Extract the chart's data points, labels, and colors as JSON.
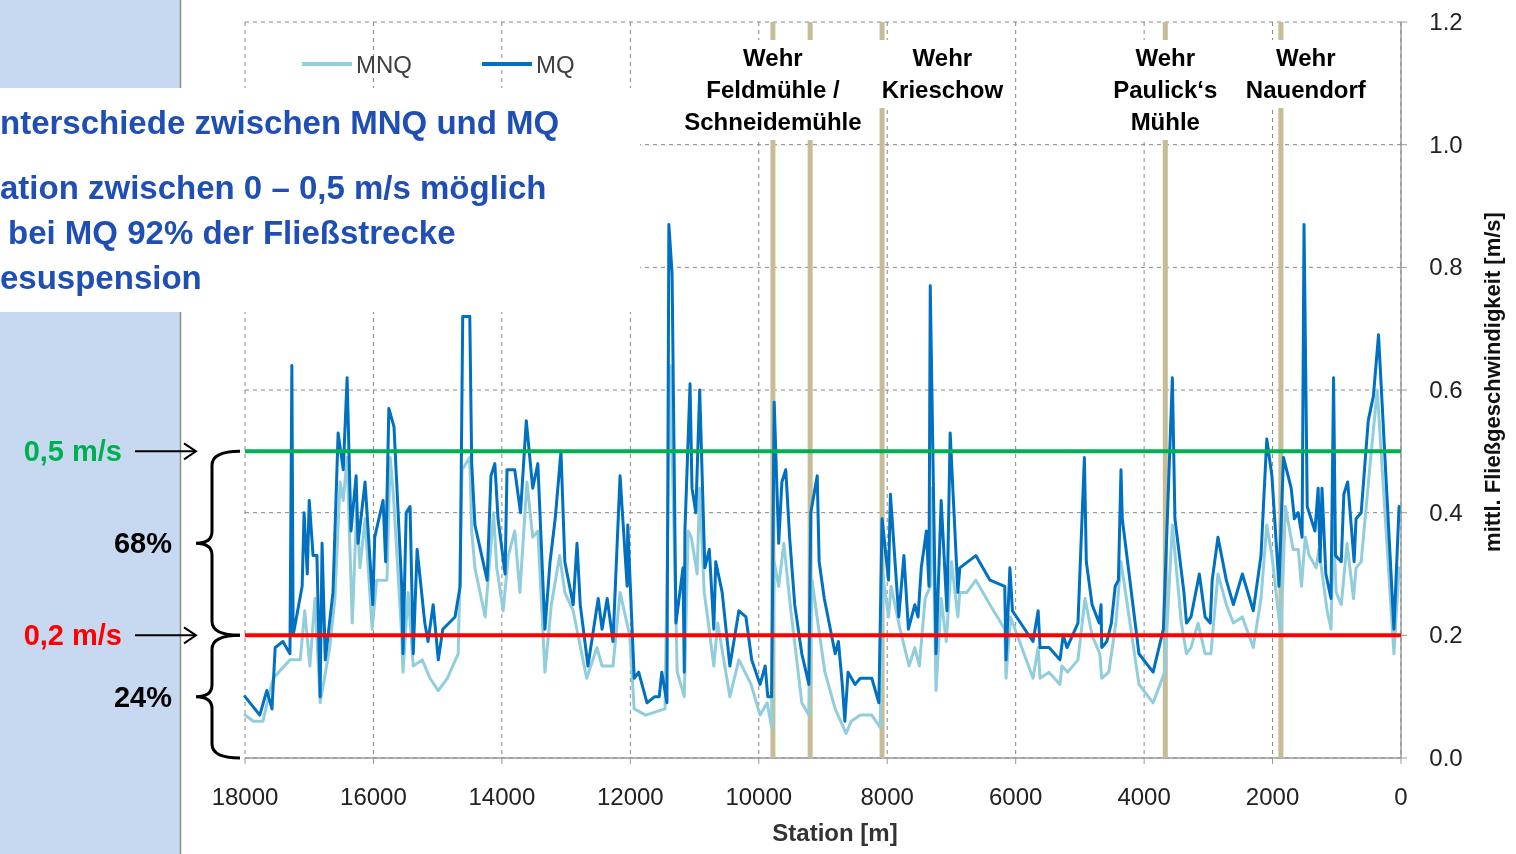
{
  "chart_data": {
    "type": "line",
    "xlabel": "Station [m]",
    "ylabel": "mittl. Fließgeschwindigkeit [m/s]",
    "xlim": [
      18000,
      0
    ],
    "xticks": [
      18000,
      16000,
      14000,
      12000,
      10000,
      8000,
      6000,
      4000,
      2000,
      0
    ],
    "ylim": [
      0,
      1.2
    ],
    "yticks": [
      {
        "value": 0,
        "label": "0.0"
      },
      0.2,
      0.4,
      0.6,
      0.8,
      {
        "value": 1,
        "label": "1.0"
      },
      1.2
    ],
    "grid": true,
    "legend": "top left",
    "line_style": "solid",
    "series": [
      {
        "name": "MNQ",
        "color": "#92cddc",
        "x": [
          18000,
          17870,
          17720,
          17610,
          17560,
          17300,
          17140,
          17070,
          16990,
          16910,
          16830,
          16680,
          16600,
          16520,
          16470,
          16410,
          16330,
          16260,
          16210,
          16130,
          16020,
          15950,
          15790,
          15740,
          15690,
          15560,
          15540,
          15460,
          15380,
          15240,
          15120,
          14990,
          14850,
          14680,
          14620,
          14500,
          14470,
          14420,
          14260,
          14130,
          14080,
          13980,
          13900,
          13800,
          13720,
          13610,
          13520,
          13440,
          13330,
          13230,
          13100,
          13020,
          12890,
          12680,
          12520,
          12440,
          12270,
          12160,
          12010,
          11940,
          11760,
          11460,
          11380,
          11270,
          11160,
          11100,
          11050,
          10960,
          10920,
          10850,
          10810,
          10700,
          10640,
          10450,
          10310,
          10120,
          9980,
          9870,
          9800,
          9760,
          9690,
          9610,
          9500,
          9330,
          9220,
          9170,
          9080,
          8970,
          8810,
          8640,
          8560,
          8420,
          8240,
          8110,
          8070,
          7980,
          7940,
          7800,
          7660,
          7570,
          7500,
          7410,
          7330,
          7300,
          7240,
          7160,
          7080,
          7000,
          6900,
          6870,
          6760,
          6620,
          6400,
          6170,
          6150,
          6080,
          5730,
          5650,
          5620,
          5480,
          5310,
          5280,
          5190,
          5030,
          4920,
          4810,
          4690,
          4660,
          4550,
          4440,
          4360,
          4080,
          3860,
          3680,
          3560,
          3420,
          3340,
          3270,
          3160,
          3050,
          2960,
          2850,
          2720,
          2610,
          2470,
          2300,
          2180,
          2090,
          2010,
          1870,
          1800,
          1680,
          1600,
          1550,
          1490,
          1430,
          1320,
          1280,
          1240,
          1150,
          1090,
          1050,
          1010,
          930,
          840,
          740,
          700,
          620,
          480,
          370,
          250,
          110,
          30
        ],
        "values": [
          0.07,
          0.06,
          0.06,
          0.11,
          0.13,
          0.16,
          0.16,
          0.24,
          0.15,
          0.26,
          0.09,
          0.18,
          0.26,
          0.45,
          0.42,
          0.49,
          0.22,
          0.41,
          0.31,
          0.39,
          0.21,
          0.29,
          0.29,
          0.49,
          0.43,
          0.2,
          0.14,
          0.27,
          0.15,
          0.16,
          0.13,
          0.11,
          0.13,
          0.17,
          0.47,
          0.49,
          0.37,
          0.31,
          0.23,
          0.4,
          0.31,
          0.24,
          0.33,
          0.37,
          0.27,
          0.45,
          0.36,
          0.37,
          0.14,
          0.25,
          0.33,
          0.27,
          0.24,
          0.13,
          0.18,
          0.15,
          0.15,
          0.27,
          0.2,
          0.08,
          0.07,
          0.08,
          0.64,
          0.14,
          0.1,
          0.37,
          0.36,
          0.3,
          0.44,
          0.27,
          0.24,
          0.15,
          0.22,
          0.1,
          0.16,
          0.12,
          0.07,
          0.09,
          0.05,
          0.32,
          0.28,
          0.35,
          0.24,
          0.09,
          0.07,
          0.29,
          0.22,
          0.14,
          0.08,
          0.04,
          0.06,
          0.07,
          0.07,
          0.05,
          0.3,
          0.23,
          0.28,
          0.21,
          0.15,
          0.18,
          0.15,
          0.26,
          0.28,
          0.44,
          0.11,
          0.26,
          0.19,
          0.32,
          0.23,
          0.27,
          0.27,
          0.29,
          0.25,
          0.21,
          0.13,
          0.23,
          0.13,
          0.18,
          0.13,
          0.14,
          0.12,
          0.15,
          0.14,
          0.16,
          0.26,
          0.2,
          0.17,
          0.13,
          0.14,
          0.22,
          0.32,
          0.12,
          0.09,
          0.14,
          0.38,
          0.22,
          0.17,
          0.18,
          0.22,
          0.17,
          0.17,
          0.3,
          0.25,
          0.22,
          0.23,
          0.18,
          0.26,
          0.38,
          0.33,
          0.2,
          0.41,
          0.34,
          0.34,
          0.28,
          0.36,
          0.33,
          0.31,
          0.34,
          0.31,
          0.24,
          0.21,
          0.38,
          0.27,
          0.25,
          0.35,
          0.26,
          0.31,
          0.32,
          0.48,
          0.6,
          0.4,
          0.17,
          0.31
        ]
      },
      {
        "name": "MQ",
        "color": "#0070c0",
        "x": [
          18000,
          17770,
          17660,
          17580,
          17530,
          17410,
          17300,
          17270,
          17250,
          17110,
          17080,
          17030,
          17000,
          16940,
          16880,
          16830,
          16800,
          16750,
          16630,
          16550,
          16470,
          16410,
          16350,
          16270,
          16240,
          16130,
          16010,
          15980,
          15850,
          15810,
          15760,
          15680,
          15560,
          15540,
          15490,
          15430,
          15380,
          15320,
          15200,
          15150,
          15070,
          14990,
          14920,
          14730,
          14650,
          14610,
          14500,
          14470,
          14420,
          14230,
          14170,
          14110,
          14060,
          13950,
          13920,
          13800,
          13710,
          13620,
          13520,
          13440,
          13330,
          13250,
          13170,
          13080,
          13020,
          12890,
          12830,
          12780,
          12660,
          12500,
          12440,
          12360,
          12270,
          12160,
          12050,
          12040,
          11940,
          11870,
          11740,
          11620,
          11550,
          11510,
          11430,
          11400,
          11350,
          11290,
          11180,
          11160,
          11150,
          11070,
          11040,
          10980,
          10920,
          10840,
          10770,
          10700,
          10670,
          10570,
          10450,
          10310,
          10200,
          10110,
          9980,
          9900,
          9860,
          9800,
          9760,
          9690,
          9640,
          9580,
          9520,
          9440,
          9330,
          9220,
          9190,
          9090,
          9060,
          8980,
          8810,
          8760,
          8700,
          8660,
          8610,
          8500,
          8420,
          8240,
          8130,
          8080,
          7980,
          7950,
          7820,
          7740,
          7670,
          7570,
          7520,
          7470,
          7390,
          7350,
          7330,
          7240,
          7160,
          7070,
          7020,
          6900,
          6870,
          6620,
          6400,
          6170,
          6150,
          6090,
          6050,
          5730,
          5650,
          5620,
          5480,
          5310,
          5260,
          5200,
          5030,
          4930,
          4900,
          4810,
          4700,
          4670,
          4660,
          4580,
          4510,
          4450,
          4400,
          4360,
          4340,
          4080,
          3860,
          3700,
          3560,
          3520,
          3380,
          3340,
          3270,
          3140,
          3050,
          2970,
          2940,
          2850,
          2720,
          2610,
          2470,
          2300,
          2180,
          2090,
          2010,
          1900,
          1830,
          1710,
          1660,
          1600,
          1540,
          1510,
          1460,
          1340,
          1290,
          1260,
          1230,
          1170,
          1090,
          1050,
          1020,
          930,
          890,
          830,
          730,
          700,
          620,
          510,
          430,
          350,
          110,
          30
        ],
        "values": [
          0.1,
          0.07,
          0.11,
          0.08,
          0.18,
          0.19,
          0.17,
          0.64,
          0.2,
          0.28,
          0.4,
          0.3,
          0.42,
          0.33,
          0.33,
          0.1,
          0.35,
          0.16,
          0.27,
          0.53,
          0.47,
          0.62,
          0.37,
          0.46,
          0.35,
          0.45,
          0.25,
          0.36,
          0.42,
          0.32,
          0.57,
          0.54,
          0.28,
          0.17,
          0.4,
          0.41,
          0.17,
          0.34,
          0.22,
          0.19,
          0.25,
          0.16,
          0.21,
          0.23,
          0.28,
          0.72,
          0.72,
          0.48,
          0.38,
          0.29,
          0.46,
          0.48,
          0.39,
          0.3,
          0.47,
          0.47,
          0.4,
          0.55,
          0.44,
          0.48,
          0.21,
          0.32,
          0.39,
          0.5,
          0.32,
          0.25,
          0.35,
          0.25,
          0.15,
          0.26,
          0.21,
          0.26,
          0.19,
          0.46,
          0.28,
          0.38,
          0.13,
          0.14,
          0.09,
          0.1,
          0.1,
          0.14,
          0.09,
          0.87,
          0.79,
          0.22,
          0.31,
          0.14,
          0.37,
          0.61,
          0.44,
          0.4,
          0.6,
          0.31,
          0.34,
          0.21,
          0.32,
          0.27,
          0.15,
          0.24,
          0.23,
          0.16,
          0.12,
          0.15,
          0.1,
          0.1,
          0.58,
          0.35,
          0.45,
          0.47,
          0.36,
          0.25,
          0.17,
          0.12,
          0.4,
          0.46,
          0.32,
          0.26,
          0.17,
          0.19,
          0.12,
          0.06,
          0.14,
          0.12,
          0.13,
          0.13,
          0.09,
          0.39,
          0.29,
          0.43,
          0.23,
          0.33,
          0.21,
          0.25,
          0.23,
          0.31,
          0.37,
          0.28,
          0.77,
          0.17,
          0.42,
          0.24,
          0.53,
          0.27,
          0.31,
          0.33,
          0.29,
          0.28,
          0.16,
          0.31,
          0.24,
          0.19,
          0.24,
          0.18,
          0.18,
          0.16,
          0.2,
          0.18,
          0.22,
          0.49,
          0.32,
          0.25,
          0.22,
          0.25,
          0.18,
          0.19,
          0.22,
          0.28,
          0.29,
          0.47,
          0.39,
          0.17,
          0.14,
          0.21,
          0.62,
          0.39,
          0.27,
          0.22,
          0.23,
          0.3,
          0.23,
          0.22,
          0.29,
          0.36,
          0.29,
          0.25,
          0.3,
          0.24,
          0.33,
          0.52,
          0.46,
          0.28,
          0.49,
          0.44,
          0.39,
          0.4,
          0.36,
          0.87,
          0.41,
          0.37,
          0.44,
          0.32,
          0.44,
          0.3,
          0.26,
          0.62,
          0.33,
          0.32,
          0.43,
          0.45,
          0.32,
          0.39,
          0.4,
          0.55,
          0.59,
          0.69,
          0.21,
          0.41
        ]
      }
    ],
    "ref_lines": [
      {
        "axis": "y",
        "value": 0.5,
        "label": "0,5 m/s",
        "color": "#00b050"
      },
      {
        "axis": "y",
        "value": 0.2,
        "label": "0,2 m/s",
        "color": "#ff0000"
      },
      {
        "axis": "x",
        "value": 9780,
        "label": "Wehr\nFeldmühle /\nSchneidemühle",
        "color": "#c4bd97"
      },
      {
        "axis": "x",
        "value": 9200,
        "label": null,
        "color": "#c4bd97"
      },
      {
        "axis": "x",
        "value": 8080,
        "label": "Wehr\nKrieschow",
        "color": "#c4bd97"
      },
      {
        "axis": "x",
        "value": 3670,
        "label": "Wehr\nPaulick‘s\nMühle",
        "color": "#c4bd97"
      },
      {
        "axis": "x",
        "value": 1870,
        "label": "Wehr\nNauendorf",
        "color": "#c4bd97"
      }
    ],
    "annotations": [
      "nterschiede zwischen MNQ und MQ",
      "ation zwischen 0 – 0,5 m/s möglich",
      "bei MQ 92% der Fließstrecke",
      "esuspension",
      "68%",
      "24%"
    ]
  }
}
